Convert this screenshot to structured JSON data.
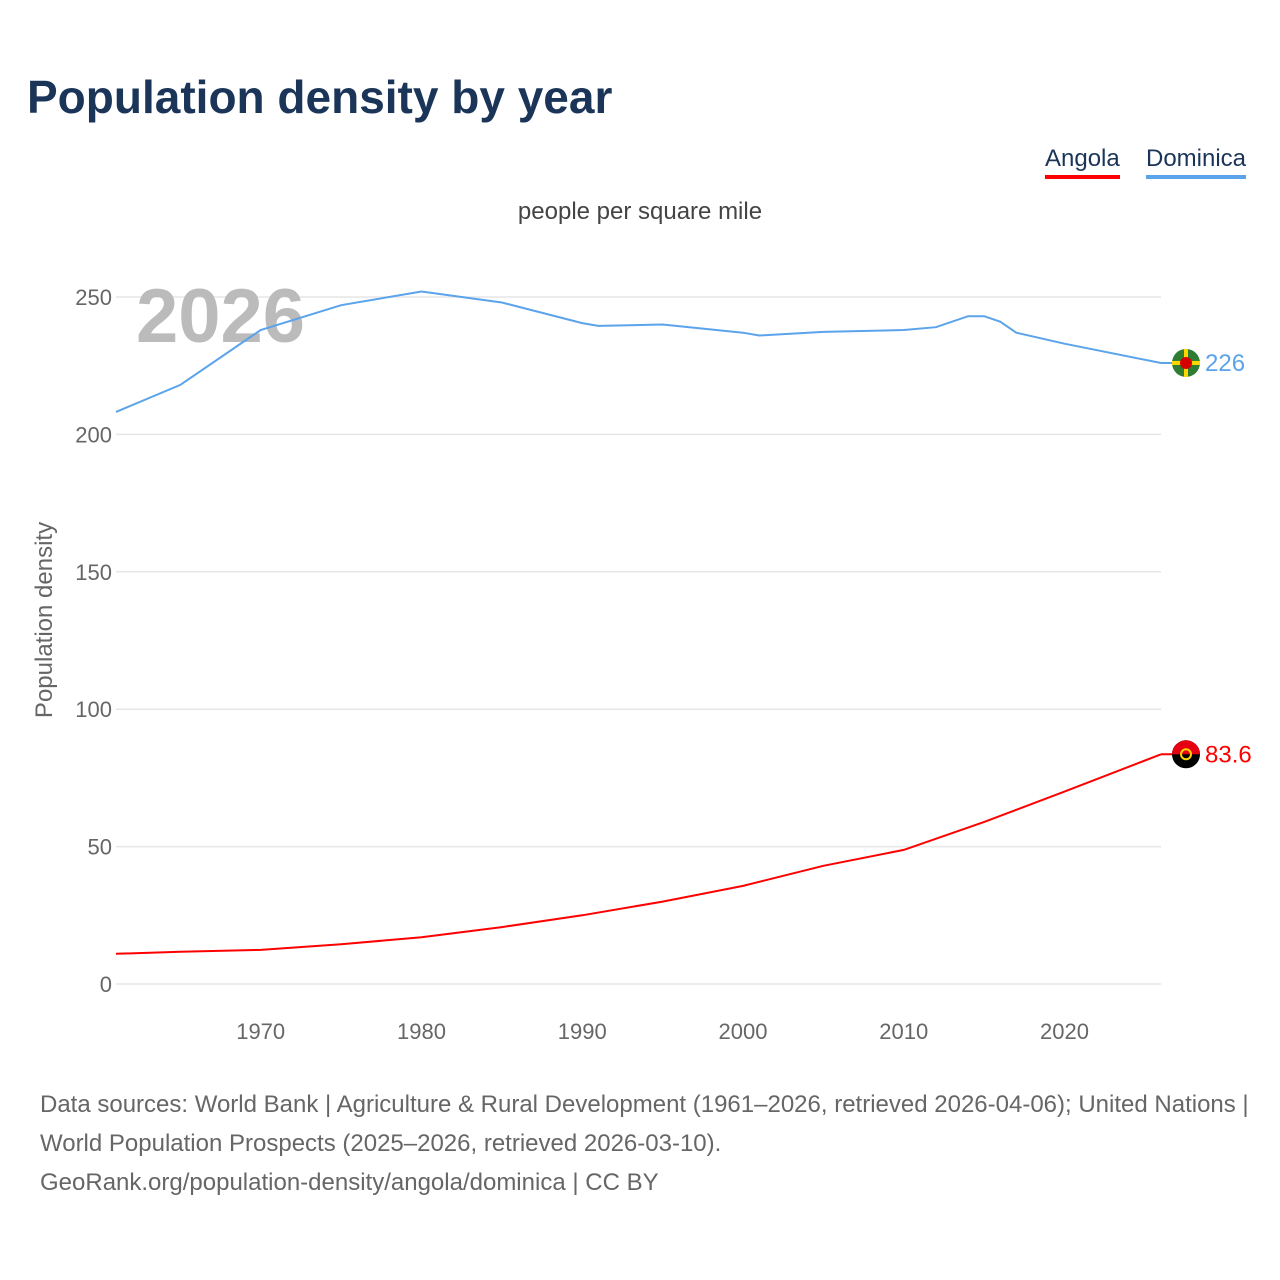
{
  "title": "Population density by year",
  "subtitle": "people per square mile",
  "legend": [
    {
      "name": "Angola"
    },
    {
      "name": "Dominica"
    }
  ],
  "footer": {
    "line1": "Data sources: World Bank | Agriculture & Rural Development (1961–2026, retrieved 2026-04-06); United Nations | World Population Prospects (2025–2026, retrieved 2026-03-10).",
    "line2": "GeoRank.org/population-density/angola/dominica | CC BY"
  },
  "chart_data": {
    "type": "line",
    "title": "Population density by year",
    "subtitle": "people per square mile",
    "ylabel": "Population density",
    "xlabel": "",
    "xlim": [
      1961,
      2026
    ],
    "ylim": [
      0,
      270
    ],
    "yticks": [
      0,
      50,
      100,
      150,
      200,
      250
    ],
    "xticks": [
      1970,
      1980,
      1990,
      2000,
      2010,
      2020
    ],
    "grid": true,
    "legend_position": "top-right",
    "year_watermark": "2026",
    "series": [
      {
        "name": "Angola",
        "color": "#ff0000",
        "end_label": "83.6",
        "x": [
          1961,
          1965,
          1970,
          1975,
          1980,
          1985,
          1990,
          1995,
          2000,
          2005,
          2010,
          2015,
          2020,
          2026
        ],
        "values": [
          11,
          11.7,
          12.4,
          14.5,
          17,
          20.7,
          25,
          30,
          35.7,
          43,
          48.8,
          59,
          70,
          83.6
        ]
      },
      {
        "name": "Dominica",
        "color": "#5ba3ea",
        "end_label": "226",
        "x": [
          1961,
          1965,
          1970,
          1975,
          1980,
          1985,
          1990,
          1991,
          1995,
          2000,
          2001,
          2005,
          2010,
          2012,
          2014,
          2015,
          2016,
          2017,
          2020,
          2026
        ],
        "values": [
          208.2,
          218,
          238,
          247,
          252,
          248,
          240.5,
          239.5,
          240,
          237,
          236,
          237.3,
          238,
          239,
          243,
          243,
          241,
          237,
          233,
          226
        ]
      }
    ]
  }
}
